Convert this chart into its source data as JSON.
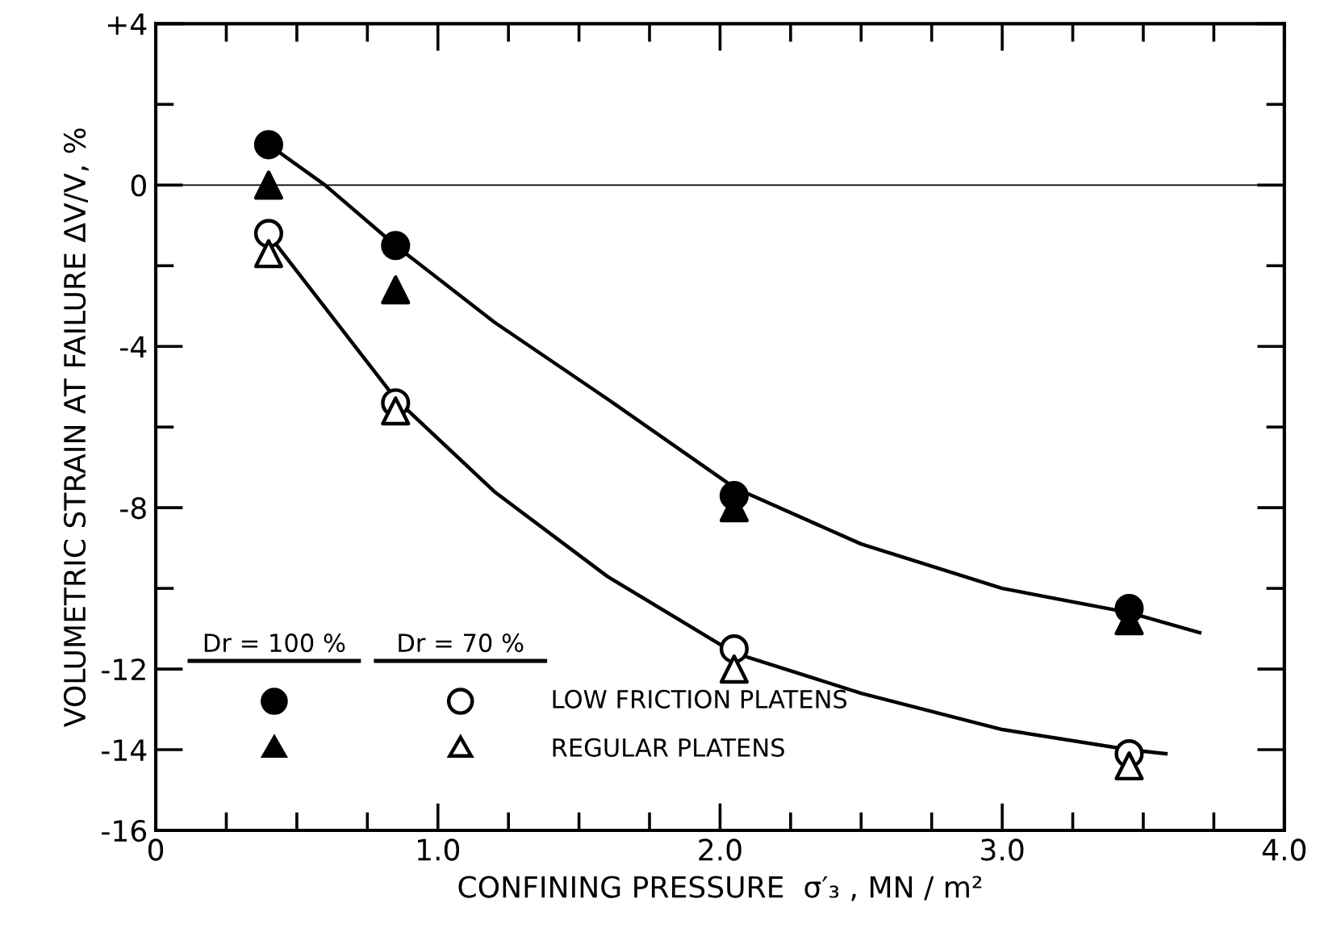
{
  "chart_data": {
    "type": "scatter",
    "xlabel": "CONFINING PRESSURE  σ′₃ , MN / m²",
    "ylabel": "VOLUMETRIC STRAIN AT FAILURE ΔV/V, %",
    "xlim": [
      0,
      4.0
    ],
    "ylim": [
      -16,
      4
    ],
    "xticks": [
      0,
      {
        "value": 1,
        "label": "1.0"
      },
      {
        "value": 2,
        "label": "2.0"
      },
      {
        "value": 3,
        "label": "3.0"
      },
      {
        "value": 4,
        "label": "4.0"
      }
    ],
    "yticks": [
      {
        "value": 4,
        "label": "+4"
      },
      0,
      -4,
      -8,
      -12,
      -14,
      -16
    ],
    "x": [
      0.4,
      0.85,
      2.05,
      3.45
    ],
    "series": [
      {
        "color": "#000000",
        "marker": "circle",
        "values": [
          1.0,
          -1.5,
          -7.7,
          -10.5
        ]
      },
      {
        "color": "#000000",
        "marker": "triangle",
        "values": [
          0.0,
          -2.6,
          -8.0,
          -10.8
        ]
      },
      {
        "color": "#ffffff",
        "marker": "circle",
        "values": [
          -1.2,
          -5.4,
          -11.5,
          -14.1
        ]
      },
      {
        "color": "#ffffff",
        "marker": "triangle",
        "values": [
          -1.7,
          -5.6,
          -12.0,
          -14.4
        ]
      },
      {
        "type": "line",
        "color": "#000000",
        "marker": "none",
        "x": [
          0.4,
          0.6,
          0.85,
          1.2,
          1.6,
          2.05,
          2.5,
          3.0,
          3.45,
          3.7
        ],
        "values": [
          1.0,
          0.0,
          -1.5,
          -3.4,
          -5.3,
          -7.5,
          -8.9,
          -10.0,
          -10.6,
          -11.1
        ]
      },
      {
        "type": "line",
        "color": "#000000",
        "marker": "none",
        "x": [
          0.43,
          0.85,
          1.2,
          1.6,
          2.05,
          2.5,
          3.0,
          3.45,
          3.58
        ],
        "values": [
          -1.5,
          -5.3,
          -7.6,
          -9.7,
          -11.6,
          -12.6,
          -13.5,
          -14.0,
          -14.1
        ]
      }
    ],
    "ref_lines": [
      {
        "axis": "y",
        "value": 0,
        "color": "#000000"
      }
    ],
    "annotations": [
      "Dr = 100 %",
      "Dr = 70 %",
      "LOW FRICTION PLATENS",
      "REGULAR PLATENS"
    ],
    "grid": false,
    "legend": false
  }
}
